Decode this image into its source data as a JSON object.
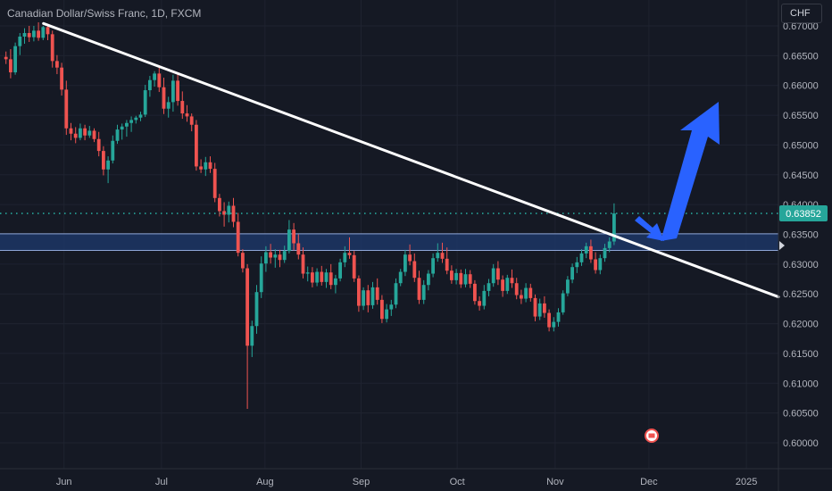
{
  "header": {
    "title": "Canadian Dollar/Swiss Franc, 1D, FXCM"
  },
  "currency_button": {
    "label": "CHF"
  },
  "colors": {
    "background": "#151924",
    "up": "#26a69a",
    "down": "#ef5350",
    "zone": "#1e3a6e",
    "price_line": "#26a69a",
    "trendline": "#ffffff",
    "arrow": "#2962ff"
  },
  "chart_data": {
    "type": "candlestick",
    "title": "Canadian Dollar/Swiss Franc, 1D, FXCM",
    "ylim": [
      0.5995,
      0.6734
    ],
    "y_ticks": [
      "0.67000",
      "0.66500",
      "0.66000",
      "0.65500",
      "0.65000",
      "0.64500",
      "0.64000",
      "0.63500",
      "0.63000",
      "0.62500",
      "0.62000",
      "0.61500",
      "0.61000",
      "0.60500",
      "0.60000"
    ],
    "x_ticks": [
      "Jun",
      "Jul",
      "Aug",
      "Sep",
      "Oct",
      "Nov",
      "Dec",
      "2025"
    ],
    "last_price": "0.63852",
    "grid": true,
    "support_zone": {
      "low": 0.6323,
      "high": 0.6351
    },
    "trendline": {
      "from": [
        0,
        0.6704
      ],
      "to": [
        145,
        0.6245
      ]
    },
    "ohlc": [
      [
        0.6648,
        0.6657,
        0.6636,
        0.6644
      ],
      [
        0.6644,
        0.6661,
        0.6612,
        0.6622
      ],
      [
        0.6622,
        0.6672,
        0.6618,
        0.6666
      ],
      [
        0.6666,
        0.6688,
        0.6651,
        0.6682
      ],
      [
        0.6682,
        0.6696,
        0.667,
        0.6688
      ],
      [
        0.6688,
        0.67,
        0.6673,
        0.6681
      ],
      [
        0.6681,
        0.67,
        0.6674,
        0.6692
      ],
      [
        0.6692,
        0.6706,
        0.6675,
        0.668
      ],
      [
        0.668,
        0.67,
        0.6676,
        0.6698
      ],
      [
        0.6698,
        0.6702,
        0.6676,
        0.6686
      ],
      [
        0.6686,
        0.6692,
        0.663,
        0.6641
      ],
      [
        0.6641,
        0.6651,
        0.6619,
        0.663
      ],
      [
        0.663,
        0.6638,
        0.6583,
        0.6593
      ],
      [
        0.6593,
        0.6608,
        0.6517,
        0.6528
      ],
      [
        0.6528,
        0.6537,
        0.6508,
        0.6519
      ],
      [
        0.6519,
        0.653,
        0.6503,
        0.6512
      ],
      [
        0.6512,
        0.6536,
        0.6508,
        0.6528
      ],
      [
        0.6528,
        0.6534,
        0.6508,
        0.6516
      ],
      [
        0.6516,
        0.6532,
        0.6512,
        0.6524
      ],
      [
        0.6524,
        0.6528,
        0.6505,
        0.651
      ],
      [
        0.651,
        0.6522,
        0.6481,
        0.649
      ],
      [
        0.649,
        0.6498,
        0.6449,
        0.6459
      ],
      [
        0.6459,
        0.6481,
        0.6436,
        0.6474
      ],
      [
        0.6474,
        0.6516,
        0.6469,
        0.6507
      ],
      [
        0.6507,
        0.6534,
        0.6502,
        0.6526
      ],
      [
        0.6526,
        0.6536,
        0.6509,
        0.6531
      ],
      [
        0.6531,
        0.6542,
        0.6514,
        0.6537
      ],
      [
        0.6537,
        0.6548,
        0.6522,
        0.6542
      ],
      [
        0.6542,
        0.6549,
        0.6536,
        0.6546
      ],
      [
        0.6546,
        0.6556,
        0.654,
        0.6551
      ],
      [
        0.6551,
        0.6601,
        0.6547,
        0.6592
      ],
      [
        0.6592,
        0.6616,
        0.6581,
        0.6609
      ],
      [
        0.6609,
        0.6624,
        0.6598,
        0.662
      ],
      [
        0.662,
        0.6631,
        0.6589,
        0.6597
      ],
      [
        0.6597,
        0.6613,
        0.6552,
        0.6561
      ],
      [
        0.6561,
        0.6581,
        0.6546,
        0.6572
      ],
      [
        0.6572,
        0.6618,
        0.6556,
        0.6608
      ],
      [
        0.6608,
        0.6622,
        0.6566,
        0.6574
      ],
      [
        0.6574,
        0.659,
        0.6544,
        0.6553
      ],
      [
        0.6553,
        0.6567,
        0.6539,
        0.6548
      ],
      [
        0.6548,
        0.6553,
        0.6523,
        0.6534
      ],
      [
        0.6534,
        0.6542,
        0.6457,
        0.6464
      ],
      [
        0.6464,
        0.6476,
        0.6453,
        0.6459
      ],
      [
        0.6459,
        0.648,
        0.6448,
        0.6471
      ],
      [
        0.6471,
        0.6481,
        0.6453,
        0.646
      ],
      [
        0.646,
        0.647,
        0.6404,
        0.6411
      ],
      [
        0.6411,
        0.6418,
        0.638,
        0.6389
      ],
      [
        0.6389,
        0.6404,
        0.6363,
        0.6383
      ],
      [
        0.6383,
        0.6405,
        0.637,
        0.6398
      ],
      [
        0.6398,
        0.6411,
        0.6362,
        0.6371
      ],
      [
        0.6371,
        0.6386,
        0.6313,
        0.6319
      ],
      [
        0.6319,
        0.6325,
        0.6286,
        0.6293
      ],
      [
        0.6293,
        0.63,
        0.6057,
        0.6163
      ],
      [
        0.6163,
        0.6205,
        0.6144,
        0.6196
      ],
      [
        0.6196,
        0.6265,
        0.6183,
        0.6253
      ],
      [
        0.6253,
        0.6313,
        0.6243,
        0.6301
      ],
      [
        0.6301,
        0.633,
        0.6287,
        0.632
      ],
      [
        0.632,
        0.6334,
        0.6301,
        0.6311
      ],
      [
        0.6311,
        0.6325,
        0.6294,
        0.6316
      ],
      [
        0.6316,
        0.6324,
        0.6295,
        0.6307
      ],
      [
        0.6307,
        0.6331,
        0.6302,
        0.6322
      ],
      [
        0.6322,
        0.6374,
        0.6318,
        0.6358
      ],
      [
        0.6358,
        0.6369,
        0.6323,
        0.6335
      ],
      [
        0.6335,
        0.635,
        0.6308,
        0.6316
      ],
      [
        0.6316,
        0.6328,
        0.6276,
        0.6284
      ],
      [
        0.6284,
        0.6296,
        0.6271,
        0.6286
      ],
      [
        0.6286,
        0.6295,
        0.6261,
        0.6269
      ],
      [
        0.6269,
        0.6293,
        0.6263,
        0.6287
      ],
      [
        0.6287,
        0.6297,
        0.6264,
        0.627
      ],
      [
        0.627,
        0.6292,
        0.626,
        0.6286
      ],
      [
        0.6286,
        0.63,
        0.6258,
        0.6265
      ],
      [
        0.6265,
        0.6282,
        0.6251,
        0.6276
      ],
      [
        0.6276,
        0.6309,
        0.6271,
        0.6303
      ],
      [
        0.6303,
        0.633,
        0.6295,
        0.6319
      ],
      [
        0.6319,
        0.6345,
        0.6309,
        0.6315
      ],
      [
        0.6315,
        0.6322,
        0.627,
        0.6276
      ],
      [
        0.6276,
        0.6281,
        0.622,
        0.623
      ],
      [
        0.623,
        0.6261,
        0.6223,
        0.6256
      ],
      [
        0.6256,
        0.6265,
        0.6219,
        0.6231
      ],
      [
        0.6231,
        0.627,
        0.6225,
        0.6261
      ],
      [
        0.6261,
        0.6276,
        0.6232,
        0.624
      ],
      [
        0.624,
        0.6248,
        0.6201,
        0.6208
      ],
      [
        0.6208,
        0.6233,
        0.6202,
        0.6224
      ],
      [
        0.6224,
        0.624,
        0.6213,
        0.6232
      ],
      [
        0.6232,
        0.6276,
        0.6226,
        0.6268
      ],
      [
        0.6268,
        0.6292,
        0.6263,
        0.6287
      ],
      [
        0.6287,
        0.6324,
        0.628,
        0.6316
      ],
      [
        0.6316,
        0.6333,
        0.6298,
        0.6305
      ],
      [
        0.6305,
        0.6318,
        0.627,
        0.6277
      ],
      [
        0.6277,
        0.6289,
        0.6233,
        0.624
      ],
      [
        0.624,
        0.6273,
        0.6233,
        0.6265
      ],
      [
        0.6265,
        0.629,
        0.6256,
        0.6284
      ],
      [
        0.6284,
        0.6318,
        0.6278,
        0.631
      ],
      [
        0.631,
        0.6335,
        0.6304,
        0.6319
      ],
      [
        0.6319,
        0.6336,
        0.6302,
        0.6309
      ],
      [
        0.6309,
        0.6328,
        0.6283,
        0.6289
      ],
      [
        0.6289,
        0.6298,
        0.6267,
        0.6273
      ],
      [
        0.6273,
        0.6292,
        0.6266,
        0.6285
      ],
      [
        0.6285,
        0.6291,
        0.626,
        0.6266
      ],
      [
        0.6266,
        0.6292,
        0.6261,
        0.6283
      ],
      [
        0.6283,
        0.629,
        0.626,
        0.6267
      ],
      [
        0.6267,
        0.6273,
        0.6232,
        0.6238
      ],
      [
        0.6238,
        0.6246,
        0.6222,
        0.623
      ],
      [
        0.623,
        0.6265,
        0.6224,
        0.6255
      ],
      [
        0.6255,
        0.6275,
        0.6246,
        0.6268
      ],
      [
        0.6268,
        0.63,
        0.6262,
        0.6293
      ],
      [
        0.6293,
        0.6305,
        0.6265,
        0.6274
      ],
      [
        0.6274,
        0.6281,
        0.6245,
        0.6255
      ],
      [
        0.6255,
        0.6282,
        0.625,
        0.6277
      ],
      [
        0.6277,
        0.6291,
        0.626,
        0.6268
      ],
      [
        0.6268,
        0.6277,
        0.6241,
        0.6248
      ],
      [
        0.6248,
        0.6257,
        0.6233,
        0.6242
      ],
      [
        0.6242,
        0.6268,
        0.6236,
        0.626
      ],
      [
        0.626,
        0.6267,
        0.6237,
        0.6243
      ],
      [
        0.6243,
        0.6249,
        0.6204,
        0.6212
      ],
      [
        0.6212,
        0.6242,
        0.6206,
        0.6234
      ],
      [
        0.6234,
        0.6246,
        0.621,
        0.6218
      ],
      [
        0.6218,
        0.6224,
        0.6187,
        0.6194
      ],
      [
        0.6194,
        0.6211,
        0.6187,
        0.6203
      ],
      [
        0.6203,
        0.6226,
        0.6195,
        0.6219
      ],
      [
        0.6219,
        0.6256,
        0.6215,
        0.6251
      ],
      [
        0.6251,
        0.628,
        0.6246,
        0.6274
      ],
      [
        0.6274,
        0.6301,
        0.6268,
        0.6295
      ],
      [
        0.6295,
        0.6312,
        0.6285,
        0.6303
      ],
      [
        0.6303,
        0.6325,
        0.6297,
        0.6318
      ],
      [
        0.6318,
        0.6336,
        0.631,
        0.633
      ],
      [
        0.633,
        0.6341,
        0.6302,
        0.6308
      ],
      [
        0.6308,
        0.632,
        0.6284,
        0.629
      ],
      [
        0.629,
        0.6316,
        0.6283,
        0.631
      ],
      [
        0.631,
        0.6334,
        0.6304,
        0.6327
      ],
      [
        0.6327,
        0.6345,
        0.632,
        0.6338
      ],
      [
        0.6338,
        0.6402,
        0.6332,
        0.6385
      ]
    ]
  },
  "annotations": {
    "flag": "CA"
  }
}
